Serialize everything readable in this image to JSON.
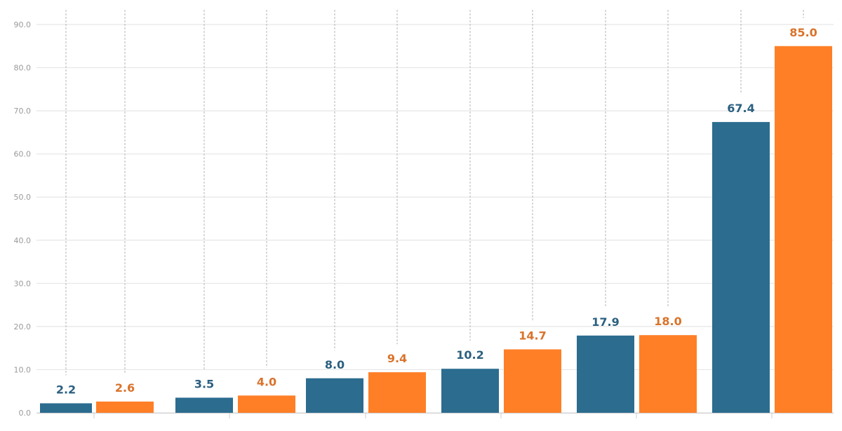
{
  "chart_data": {
    "type": "bar",
    "title": "",
    "xlabel": "",
    "ylabel": "",
    "ylim": [
      0,
      90
    ],
    "yticks": [
      "0.0",
      "10.0",
      "20.0",
      "30.0",
      "40.0",
      "50.0",
      "60.0",
      "70.0",
      "80.0",
      "90.0"
    ],
    "grid": true,
    "categories": [
      "",
      "",
      "",
      "",
      "",
      ""
    ],
    "series": [
      {
        "color": "#2b6c8f",
        "values": [
          2.2,
          3.5,
          8.0,
          10.2,
          17.9,
          67.4
        ],
        "labels": [
          "2.2",
          "3.5",
          "8.0",
          "10.2",
          "17.9",
          "67.4"
        ]
      },
      {
        "color": "#ff7f27",
        "values": [
          2.6,
          4.0,
          9.4,
          14.7,
          18.0,
          85.0
        ],
        "labels": [
          "2.6",
          "4.0",
          "9.4",
          "14.7",
          "18.0",
          "85.0"
        ]
      }
    ],
    "label_colors": [
      "#2b5f80",
      "#d9732b"
    ],
    "colors": {
      "grid": "#e6e6e6",
      "connector": "#b5b5b5",
      "axis": "#cccccc"
    }
  }
}
